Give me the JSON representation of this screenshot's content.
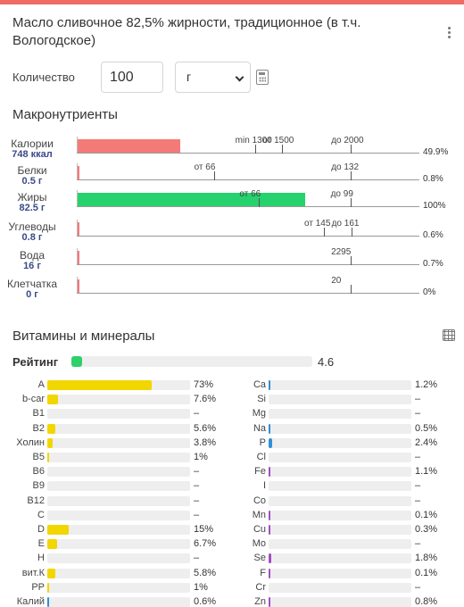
{
  "product": {
    "title": "Масло сливочное 82,5% жирности, традиционное (в т.ч. Вологодское)"
  },
  "quantity": {
    "label": "Количество",
    "value": "100",
    "unit": "г"
  },
  "macros": {
    "heading": "Макронутриенты",
    "items": [
      {
        "name": "Калории",
        "value": "748 ккал",
        "percent": "49.9%",
        "fill_pct": 49.9,
        "color": "#f47a78",
        "scale_max": 2500,
        "ticks": [
          {
            "label": "min 1300",
            "at": 1300
          },
          {
            "label": "от 1500",
            "at": 1500
          },
          {
            "label": "до 2000",
            "at": 2000
          }
        ],
        "amount": 748
      },
      {
        "name": "Белки",
        "value": "0.5 г",
        "percent": "0.8%",
        "color": "#f47a78",
        "scale_max": 165,
        "ticks": [
          {
            "label": "от 66",
            "at": 66
          },
          {
            "label": "до 132",
            "at": 132
          }
        ],
        "amount": 0.5
      },
      {
        "name": "Жиры",
        "value": "82.5 г",
        "percent": "100%",
        "color": "#27d26e",
        "scale_max": 124,
        "ticks": [
          {
            "label": "от 66",
            "at": 66
          },
          {
            "label": "до 99",
            "at": 99
          }
        ],
        "amount": 82.5
      },
      {
        "name": "Углеводы",
        "value": "0.8 г",
        "percent": "0.6%",
        "color": "#f47a78",
        "scale_max": 201,
        "ticks": [
          {
            "label": "от 145",
            "at": 145
          },
          {
            "label": "до 161",
            "at": 161
          }
        ],
        "amount": 0.8
      },
      {
        "name": "Вода",
        "value": "16 г",
        "percent": "0.7%",
        "color": "#f47a78",
        "scale_max": 2870,
        "ticks": [
          {
            "label": "2295",
            "at": 2295
          }
        ],
        "amount": 16
      },
      {
        "name": "Клетчатка",
        "value": "0 г",
        "percent": "0%",
        "color": "#f47a78",
        "scale_max": 25,
        "ticks": [
          {
            "label": "20",
            "at": 20
          }
        ],
        "amount": 0
      }
    ]
  },
  "vitamins": {
    "heading": "Витамины и минералы",
    "rating_label": "Рейтинг",
    "rating_value": "4.6",
    "rating_fill": 0.046,
    "left": [
      {
        "name": "A",
        "percent": "73%",
        "fill": 0.73,
        "color": "#f2d600"
      },
      {
        "name": "b-car",
        "percent": "7.6%",
        "fill": 0.076,
        "color": "#f2d600"
      },
      {
        "name": "B1",
        "percent": "–",
        "fill": 0,
        "color": "#f2d600"
      },
      {
        "name": "B2",
        "percent": "5.6%",
        "fill": 0.056,
        "color": "#f2d600"
      },
      {
        "name": "Холин",
        "percent": "3.8%",
        "fill": 0.038,
        "color": "#f2d600"
      },
      {
        "name": "B5",
        "percent": "1%",
        "fill": 0.01,
        "color": "#f2d600"
      },
      {
        "name": "B6",
        "percent": "–",
        "fill": 0,
        "color": "#f2d600"
      },
      {
        "name": "B9",
        "percent": "–",
        "fill": 0,
        "color": "#f2d600"
      },
      {
        "name": "B12",
        "percent": "–",
        "fill": 0,
        "color": "#f2d600"
      },
      {
        "name": "C",
        "percent": "–",
        "fill": 0,
        "color": "#f2d600"
      },
      {
        "name": "D",
        "percent": "15%",
        "fill": 0.15,
        "color": "#f2d600"
      },
      {
        "name": "E",
        "percent": "6.7%",
        "fill": 0.067,
        "color": "#f2d600"
      },
      {
        "name": "H",
        "percent": "–",
        "fill": 0,
        "color": "#f2d600"
      },
      {
        "name": "вит.К",
        "percent": "5.8%",
        "fill": 0.058,
        "color": "#f2d600"
      },
      {
        "name": "PP",
        "percent": "1%",
        "fill": 0.01,
        "color": "#f2d600"
      },
      {
        "name": "Калий",
        "percent": "0.6%",
        "fill": 0.006,
        "color": "#2f8fd8"
      }
    ],
    "right": [
      {
        "name": "Ca",
        "percent": "1.2%",
        "fill": 0.012,
        "color": "#2f8fd8"
      },
      {
        "name": "Si",
        "percent": "–",
        "fill": 0,
        "color": "#2f8fd8"
      },
      {
        "name": "Mg",
        "percent": "–",
        "fill": 0,
        "color": "#2f8fd8"
      },
      {
        "name": "Na",
        "percent": "0.5%",
        "fill": 0.005,
        "color": "#2f8fd8"
      },
      {
        "name": "P",
        "percent": "2.4%",
        "fill": 0.024,
        "color": "#2f8fd8"
      },
      {
        "name": "Cl",
        "percent": "–",
        "fill": 0,
        "color": "#2f8fd8"
      },
      {
        "name": "Fe",
        "percent": "1.1%",
        "fill": 0.011,
        "color": "#a24ec2"
      },
      {
        "name": "I",
        "percent": "–",
        "fill": 0,
        "color": "#a24ec2"
      },
      {
        "name": "Co",
        "percent": "–",
        "fill": 0,
        "color": "#a24ec2"
      },
      {
        "name": "Mn",
        "percent": "0.1%",
        "fill": 0.001,
        "color": "#a24ec2"
      },
      {
        "name": "Cu",
        "percent": "0.3%",
        "fill": 0.003,
        "color": "#a24ec2"
      },
      {
        "name": "Mo",
        "percent": "–",
        "fill": 0,
        "color": "#a24ec2"
      },
      {
        "name": "Se",
        "percent": "1.8%",
        "fill": 0.018,
        "color": "#a24ec2"
      },
      {
        "name": "F",
        "percent": "0.1%",
        "fill": 0.001,
        "color": "#a24ec2"
      },
      {
        "name": "Cr",
        "percent": "–",
        "fill": 0,
        "color": "#a24ec2"
      },
      {
        "name": "Zn",
        "percent": "0.8%",
        "fill": 0.008,
        "color": "#a24ec2"
      }
    ]
  }
}
